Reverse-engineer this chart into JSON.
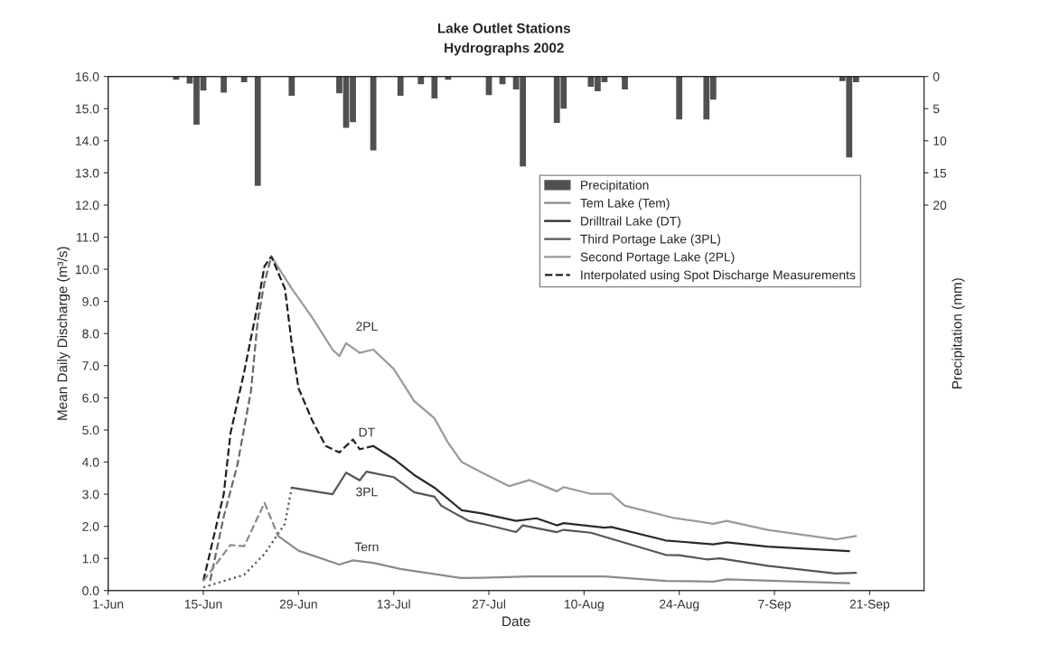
{
  "chart_data": {
    "type": "line",
    "title": "Lake Outlet Stations",
    "subtitle": "Hydrographs 2002",
    "xlabel": "Date",
    "ylabel": "Mean Daily Discharge (m³/s)",
    "y2label": "Precipitation (mm)",
    "xlim": [
      "2002-06-01",
      "2002-09-29"
    ],
    "xticks": [
      {
        "value": "2002-06-01",
        "label": "1-Jun"
      },
      {
        "value": "2002-06-15",
        "label": "15-Jun"
      },
      {
        "value": "2002-06-29",
        "label": "29-Jun"
      },
      {
        "value": "2002-07-13",
        "label": "13-Jul"
      },
      {
        "value": "2002-07-27",
        "label": "27-Jul"
      },
      {
        "value": "2002-08-10",
        "label": "10-Aug"
      },
      {
        "value": "2002-08-24",
        "label": "24-Aug"
      },
      {
        "value": "2002-09-07",
        "label": "7-Sep"
      },
      {
        "value": "2002-09-21",
        "label": "21-Sep"
      }
    ],
    "ylim": [
      0,
      16
    ],
    "yticks": [
      {
        "value": 0,
        "label": "0.0"
      },
      {
        "value": 1,
        "label": "1.0"
      },
      {
        "value": 2,
        "label": "2.0"
      },
      {
        "value": 3,
        "label": "3.0"
      },
      {
        "value": 4,
        "label": "4.0"
      },
      {
        "value": 5,
        "label": "5.0"
      },
      {
        "value": 6,
        "label": "6.0"
      },
      {
        "value": 7,
        "label": "7.0"
      },
      {
        "value": 8,
        "label": "8.0"
      },
      {
        "value": 9,
        "label": "9.0"
      },
      {
        "value": 10,
        "label": "10.0"
      },
      {
        "value": 11,
        "label": "11.0"
      },
      {
        "value": 12,
        "label": "12.0"
      },
      {
        "value": 13,
        "label": "13.0"
      },
      {
        "value": 14,
        "label": "14.0"
      },
      {
        "value": 15,
        "label": "15.0"
      },
      {
        "value": 16,
        "label": "16.0"
      }
    ],
    "y2lim": [
      80,
      0
    ],
    "y2ticks": [
      0,
      5,
      10,
      15,
      20
    ],
    "legend": "top right",
    "series": [
      {
        "name": "Precipitation",
        "type": "bar",
        "axis": "y2",
        "color": "#505050",
        "x": [
          "2002-06-11",
          "2002-06-13",
          "2002-06-14",
          "2002-06-15",
          "2002-06-18",
          "2002-06-21",
          "2002-06-23",
          "2002-06-28",
          "2002-07-05",
          "2002-07-06",
          "2002-07-07",
          "2002-07-10",
          "2002-07-14",
          "2002-07-17",
          "2002-07-19",
          "2002-07-21",
          "2002-07-27",
          "2002-07-29",
          "2002-07-31",
          "2002-08-01",
          "2002-08-06",
          "2002-08-07",
          "2002-08-11",
          "2002-08-12",
          "2002-08-13",
          "2002-08-16",
          "2002-08-24",
          "2002-08-28",
          "2002-08-29",
          "2002-09-17",
          "2002-09-18",
          "2002-09-19"
        ],
        "values": [
          0.5,
          1.1,
          7.5,
          2.2,
          2.5,
          0.9,
          17,
          3.0,
          2.6,
          8.0,
          7.1,
          11.5,
          3.0,
          1.2,
          3.4,
          0.5,
          2.9,
          1.2,
          2.0,
          14.0,
          7.2,
          5.0,
          1.6,
          2.3,
          0.9,
          2.0,
          6.7,
          6.7,
          3.6,
          0.7,
          12.6,
          0.9
        ]
      },
      {
        "name": "Tem Lake (Tem)",
        "color": "#8a8a8a",
        "line_style": "solid",
        "x": [
          "2002-06-26",
          "2002-06-29",
          "2002-07-05",
          "2002-07-07",
          "2002-07-10",
          "2002-07-14",
          "2002-07-23",
          "2002-07-26",
          "2002-08-02",
          "2002-08-13",
          "2002-08-22",
          "2002-08-29",
          "2002-08-31",
          "2002-09-18"
        ],
        "values": [
          1.7,
          1.24,
          0.81,
          0.94,
          0.86,
          0.67,
          0.39,
          0.4,
          0.44,
          0.44,
          0.3,
          0.28,
          0.35,
          0.23
        ]
      },
      {
        "name": "Drilltrail Lake (DT)",
        "color": "#2a2a2a",
        "line_style": "solid",
        "x": [
          "2002-07-10",
          "2002-07-13",
          "2002-07-16",
          "2002-07-19",
          "2002-07-23",
          "2002-07-26",
          "2002-07-31",
          "2002-08-03",
          "2002-08-06",
          "2002-08-07",
          "2002-08-13",
          "2002-08-14",
          "2002-08-22",
          "2002-08-29",
          "2002-08-31",
          "2002-09-06",
          "2002-09-18"
        ],
        "values": [
          4.5,
          4.1,
          3.6,
          3.2,
          2.5,
          2.4,
          2.17,
          2.25,
          2.03,
          2.1,
          1.96,
          1.98,
          1.56,
          1.44,
          1.5,
          1.37,
          1.23
        ]
      },
      {
        "name": "Third Portage Lake (3PL)",
        "color": "#555555",
        "line_style": "solid",
        "x": [
          "2002-06-28",
          "2002-07-04",
          "2002-07-06",
          "2002-07-08",
          "2002-07-09",
          "2002-07-13",
          "2002-07-16",
          "2002-07-19",
          "2002-07-20",
          "2002-07-24",
          "2002-07-26",
          "2002-07-31",
          "2002-08-01",
          "2002-08-06",
          "2002-08-07",
          "2002-08-11",
          "2002-08-22",
          "2002-08-24",
          "2002-08-28",
          "2002-08-30",
          "2002-09-06",
          "2002-09-16",
          "2002-09-19"
        ],
        "values": [
          3.2,
          3.0,
          3.67,
          3.43,
          3.7,
          3.53,
          3.06,
          2.92,
          2.64,
          2.17,
          2.08,
          1.82,
          2.03,
          1.82,
          1.89,
          1.8,
          1.11,
          1.1,
          0.97,
          1.0,
          0.77,
          0.53,
          0.55
        ]
      },
      {
        "name": "Second Portage Lake (2PL)",
        "color": "#9a9a9a",
        "line_style": "solid",
        "x": [
          "2002-06-25",
          "2002-06-28",
          "2002-07-01",
          "2002-07-04",
          "2002-07-05",
          "2002-07-06",
          "2002-07-08",
          "2002-07-10",
          "2002-07-13",
          "2002-07-16",
          "2002-07-19",
          "2002-07-21",
          "2002-07-23",
          "2002-07-26",
          "2002-07-30",
          "2002-08-02",
          "2002-08-06",
          "2002-08-07",
          "2002-08-11",
          "2002-08-14",
          "2002-08-16",
          "2002-08-23",
          "2002-08-29",
          "2002-08-31",
          "2002-09-06",
          "2002-09-16",
          "2002-09-19"
        ],
        "values": [
          10.4,
          9.4,
          8.5,
          7.5,
          7.3,
          7.7,
          7.4,
          7.5,
          6.9,
          5.9,
          5.36,
          4.6,
          4.0,
          3.67,
          3.25,
          3.44,
          3.09,
          3.22,
          3.01,
          3.01,
          2.64,
          2.27,
          2.08,
          2.17,
          1.89,
          1.59,
          1.7
        ]
      },
      {
        "name": "Interpolated using Spot Discharge Measurements",
        "color": "#1e1e1e",
        "line_style": "dashed",
        "x": [
          "2002-06-15",
          "2002-06-18",
          "2002-06-19",
          "2002-06-21",
          "2002-06-23",
          "2002-06-24",
          "2002-06-25",
          "2002-06-27",
          "2002-06-28",
          "2002-06-29",
          "2002-07-01",
          "2002-07-03",
          "2002-07-05",
          "2002-07-07",
          "2002-07-08",
          "2002-07-10"
        ],
        "values": [
          0.3,
          3.0,
          4.9,
          6.8,
          8.9,
          10.1,
          10.4,
          9.4,
          7.7,
          6.3,
          5.3,
          4.5,
          4.3,
          4.7,
          4.4,
          4.5
        ]
      },
      {
        "color": "#6a6a6a",
        "line_style": "dashed",
        "x": [
          "2002-06-16",
          "2002-06-18",
          "2002-06-20",
          "2002-06-22",
          "2002-06-23",
          "2002-06-24",
          "2002-06-25"
        ],
        "values": [
          0.3,
          2.3,
          3.9,
          6.2,
          8.4,
          9.6,
          10.4
        ]
      },
      {
        "color": "#555555",
        "line_style": "dotted",
        "x": [
          "2002-06-15",
          "2002-06-21",
          "2002-06-24",
          "2002-06-27",
          "2002-06-28"
        ],
        "values": [
          0.1,
          0.49,
          1.14,
          2.08,
          3.2
        ]
      },
      {
        "color": "#8a8a8a",
        "line_style": "dashed",
        "x": [
          "2002-06-15",
          "2002-06-19",
          "2002-06-21",
          "2002-06-24",
          "2002-06-26"
        ],
        "values": [
          0.3,
          1.42,
          1.38,
          2.73,
          1.7
        ]
      }
    ],
    "annotations": [
      "2PL",
      "DT",
      "3PL",
      "Tern"
    ]
  }
}
